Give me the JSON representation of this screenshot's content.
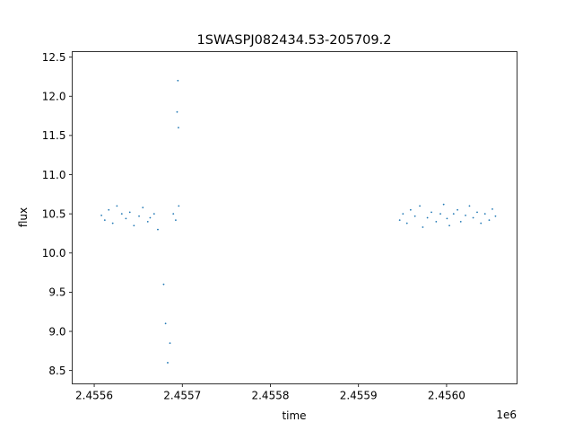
{
  "chart_data": {
    "type": "scatter",
    "title": "1SWASPJ082434.53-205709.2",
    "xlabel": "time",
    "ylabel": "flux",
    "x_offset_label": "1e6",
    "xlim": [
      2455535,
      2456040
    ],
    "ylim": [
      8.33,
      12.57
    ],
    "x_ticks": [
      2455560,
      2455660,
      2455760,
      2455860,
      2455960
    ],
    "x_tick_labels": [
      "2.4556",
      "2.4557",
      "2.4558",
      "2.4559",
      "2.4560"
    ],
    "y_ticks": [
      8.5,
      9.0,
      9.5,
      10.0,
      10.5,
      11.0,
      11.5,
      12.0,
      12.5
    ],
    "y_tick_labels": [
      "8.5",
      "9.0",
      "9.5",
      "10.0",
      "10.5",
      "11.0",
      "11.5",
      "12.0",
      "12.5"
    ],
    "grid": false,
    "marker_color": "#1f77b4",
    "series": [
      {
        "x": [
          2455568.2,
          2455572.0,
          2455576.5,
          2455581.0,
          2455585.8,
          2455591.3,
          2455596.0,
          2455600.4,
          2455605.1,
          2455610.9,
          2455615.2,
          2455620.8,
          2455623.5,
          2455628.0,
          2455632.2,
          2455638.8,
          2455641.0,
          2455643.4,
          2455646.0,
          2455649.8,
          2455652.5,
          2455654.1,
          2455655.0,
          2455655.6,
          2455656.0,
          2455906.8,
          2455910.5,
          2455915.0,
          2455919.2,
          2455924.1,
          2455929.6,
          2455933.0,
          2455938.3,
          2455942.8,
          2455948.2,
          2455953.0,
          2455956.7,
          2455960.5,
          2455963.2,
          2455968.0,
          2455972.4,
          2455976.1,
          2455981.5,
          2455986.0,
          2455990.2,
          2455994.7,
          2455999.0,
          2456003.6,
          2456008.4,
          2456012.0,
          2456015.5
        ],
        "y": [
          10.48,
          10.42,
          10.55,
          10.38,
          10.6,
          10.5,
          10.44,
          10.52,
          10.35,
          10.47,
          10.58,
          10.4,
          10.45,
          10.5,
          10.3,
          9.6,
          9.1,
          8.6,
          8.85,
          10.5,
          10.42,
          11.8,
          12.2,
          11.6,
          10.6,
          10.42,
          10.5,
          10.38,
          10.55,
          10.47,
          10.6,
          10.33,
          10.45,
          10.52,
          10.4,
          10.5,
          10.62,
          10.44,
          10.35,
          10.5,
          10.55,
          10.4,
          10.48,
          10.6,
          10.45,
          10.52,
          10.38,
          10.5,
          10.42,
          10.56,
          10.47
        ]
      }
    ]
  }
}
